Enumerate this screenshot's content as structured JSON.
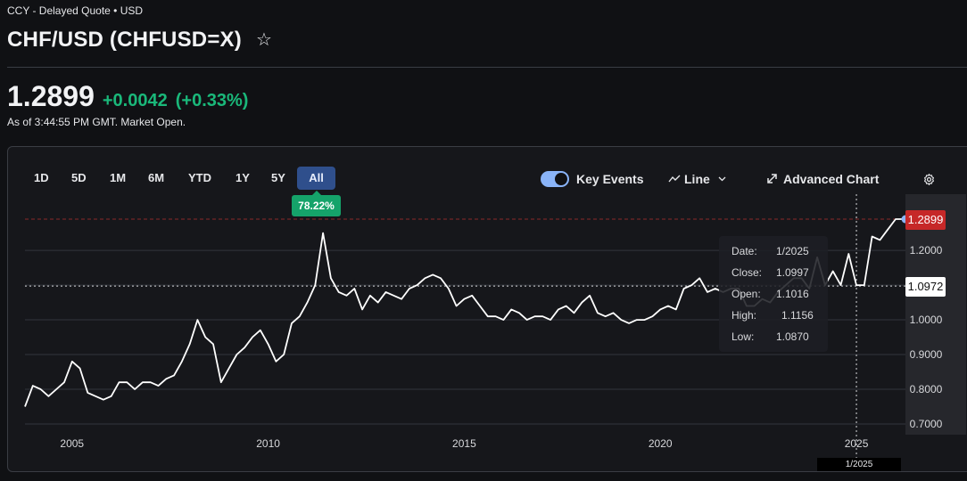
{
  "header": {
    "source": "CCY - Delayed Quote • USD",
    "title": "CHF/USD (CHFUSD=X)",
    "star_icon": "star-icon"
  },
  "quote": {
    "price": "1.2899",
    "change": "+0.0042",
    "change_pct": "(+0.33%)",
    "as_of": "As of 3:44:55 PM GMT. Market Open."
  },
  "ranges": [
    "1D",
    "5D",
    "1M",
    "6M",
    "YTD",
    "1Y",
    "5Y",
    "All"
  ],
  "active_range": "All",
  "range_badge": "78.22%",
  "toolbar": {
    "key_events": "Key Events",
    "line": "Line",
    "advanced": "Advanced Chart",
    "gear_icon": "gear-icon",
    "expand_icon": "expand-icon",
    "line_icon": "line-chart-icon",
    "chevron_icon": "chevron-down-icon"
  },
  "tooltip": {
    "date_label": "Date:",
    "date": "1/2025",
    "close_label": "Close:",
    "close": "1.0997",
    "open_label": "Open:",
    "open": "1.1016",
    "high_label": "High:",
    "high": "1.1156",
    "low_label": "Low:",
    "low": "1.0870"
  },
  "crosshair": {
    "x_label": "1/2025",
    "y_label": "1.0972"
  },
  "colors": {
    "up": "#1ab87a",
    "current": "#c62828",
    "accent": "#8ab4f8",
    "line": "#ffffff"
  },
  "chart_data": {
    "type": "line",
    "title": "",
    "xlabel": "",
    "ylabel": "",
    "x_ticks": [
      "2005",
      "2010",
      "2015",
      "2020",
      "2025"
    ],
    "y_ticks": [
      "0.7000",
      "0.8000",
      "0.9000",
      "1.0000",
      "1.1000",
      "1.2000"
    ],
    "ylim": [
      0.66,
      1.34
    ],
    "xlim": [
      2003.8,
      2026.25
    ],
    "current_value": "1.2899",
    "grid": true,
    "series": [
      {
        "x": [
          2003.8,
          2004.0,
          2004.2,
          2004.4,
          2004.6,
          2004.8,
          2005.0,
          2005.2,
          2005.4,
          2005.6,
          2005.8,
          2006.0,
          2006.2,
          2006.4,
          2006.6,
          2006.8,
          2007.0,
          2007.2,
          2007.4,
          2007.6,
          2007.8,
          2008.0,
          2008.2,
          2008.4,
          2008.6,
          2008.8,
          2009.0,
          2009.2,
          2009.4,
          2009.6,
          2009.8,
          2010.0,
          2010.2,
          2010.4,
          2010.6,
          2010.8,
          2011.0,
          2011.2,
          2011.4,
          2011.6,
          2011.8,
          2012.0,
          2012.2,
          2012.4,
          2012.6,
          2012.8,
          2013.0,
          2013.2,
          2013.4,
          2013.6,
          2013.8,
          2014.0,
          2014.2,
          2014.4,
          2014.6,
          2014.8,
          2015.0,
          2015.2,
          2015.4,
          2015.6,
          2015.8,
          2016.0,
          2016.2,
          2016.4,
          2016.6,
          2016.8,
          2017.0,
          2017.2,
          2017.4,
          2017.6,
          2017.8,
          2018.0,
          2018.2,
          2018.4,
          2018.6,
          2018.8,
          2019.0,
          2019.2,
          2019.4,
          2019.6,
          2019.8,
          2020.0,
          2020.2,
          2020.4,
          2020.6,
          2020.8,
          2021.0,
          2021.2,
          2021.4,
          2021.6,
          2021.8,
          2022.0,
          2022.2,
          2022.4,
          2022.6,
          2022.8,
          2023.0,
          2023.2,
          2023.4,
          2023.6,
          2023.8,
          2024.0,
          2024.2,
          2024.4,
          2024.6,
          2024.8,
          2025.0,
          2025.2,
          2025.4,
          2025.6,
          2025.8,
          2026.0,
          2026.25
        ],
        "y": [
          0.75,
          0.81,
          0.8,
          0.78,
          0.8,
          0.82,
          0.88,
          0.86,
          0.79,
          0.78,
          0.77,
          0.78,
          0.82,
          0.82,
          0.8,
          0.82,
          0.82,
          0.81,
          0.83,
          0.84,
          0.88,
          0.93,
          1.0,
          0.95,
          0.93,
          0.82,
          0.86,
          0.9,
          0.92,
          0.95,
          0.97,
          0.93,
          0.88,
          0.9,
          0.99,
          1.01,
          1.05,
          1.1,
          1.25,
          1.12,
          1.08,
          1.07,
          1.09,
          1.03,
          1.07,
          1.05,
          1.08,
          1.07,
          1.06,
          1.09,
          1.1,
          1.12,
          1.13,
          1.12,
          1.09,
          1.04,
          1.06,
          1.07,
          1.04,
          1.01,
          1.01,
          1.0,
          1.03,
          1.02,
          1.0,
          1.01,
          1.01,
          1.0,
          1.03,
          1.04,
          1.02,
          1.05,
          1.07,
          1.02,
          1.01,
          1.02,
          1.0,
          0.99,
          1.0,
          1.0,
          1.01,
          1.03,
          1.04,
          1.03,
          1.09,
          1.1,
          1.12,
          1.08,
          1.09,
          1.08,
          1.09,
          1.09,
          1.04,
          1.04,
          1.06,
          1.05,
          1.08,
          1.1,
          1.12,
          1.12,
          1.09,
          1.18,
          1.1,
          1.14,
          1.1,
          1.19,
          1.0997,
          1.1,
          1.24,
          1.23,
          1.26,
          1.29,
          1.2899
        ]
      }
    ]
  }
}
